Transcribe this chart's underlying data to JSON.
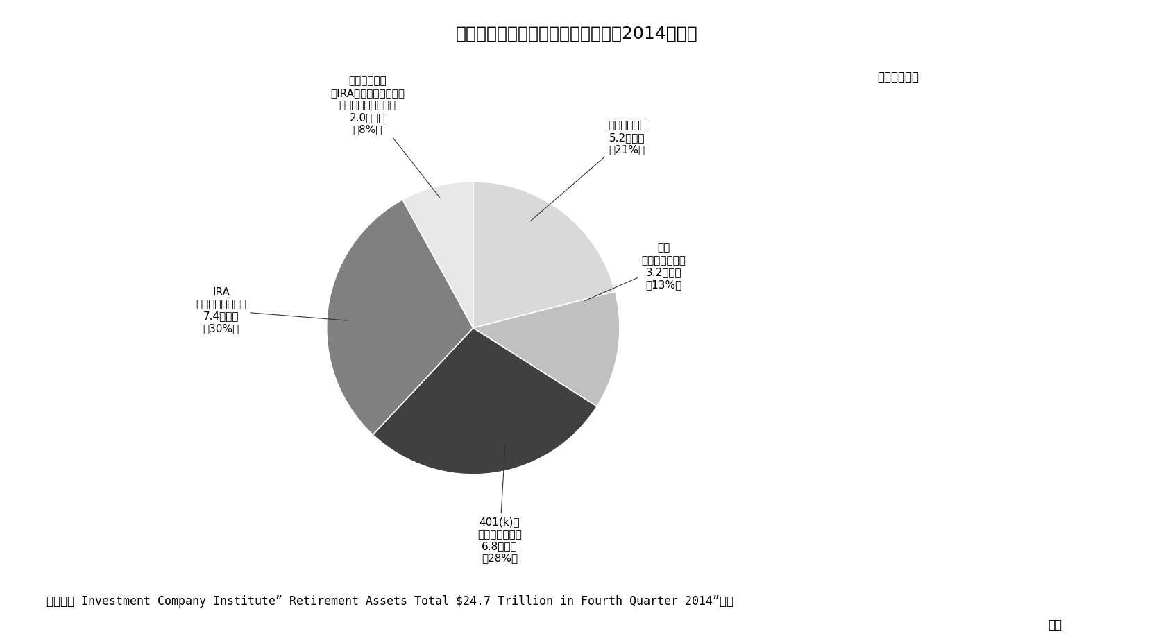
{
  "title": "米国の退職貯蓄の残高および内訳（2014年末）",
  "note": "（）内は占率",
  "slices": [
    {
      "label": "政府職員年金\n5.2兆ドル\n（21%）",
      "value": 21,
      "color": "#d9d9d9"
    },
    {
      "label": "民間\n確定給付プラン\n3.2兆ドル\n（13%）",
      "value": 13,
      "color": "#c0c0c0"
    },
    {
      "label": "401(k)等\n確定拠出プラン\n6.8兆ドル\n（28%）",
      "value": 28,
      "color": "#404040"
    },
    {
      "label": "IRA\n（個人退職勘定）\n7.4兆ドル\n（30%）",
      "value": 30,
      "color": "#808080"
    },
    {
      "label": "生保会社年金\n（IRA等、税制適格プラ\nン内のものを除く）\n2.0兆ドル\n（8%）",
      "value": 8,
      "color": "#e8e8e8"
    }
  ],
  "start_angle": 90,
  "footnote_line1": "（資料） Investment Company Institute” Retirement Assets Total $24.7 Trillion in Fourth Quarter 2014”より",
  "footnote_line2": "作成",
  "background_color": "#ffffff",
  "text_color": "#000000",
  "title_fontsize": 18,
  "label_fontsize": 11,
  "note_fontsize": 12,
  "footnote_fontsize": 12
}
